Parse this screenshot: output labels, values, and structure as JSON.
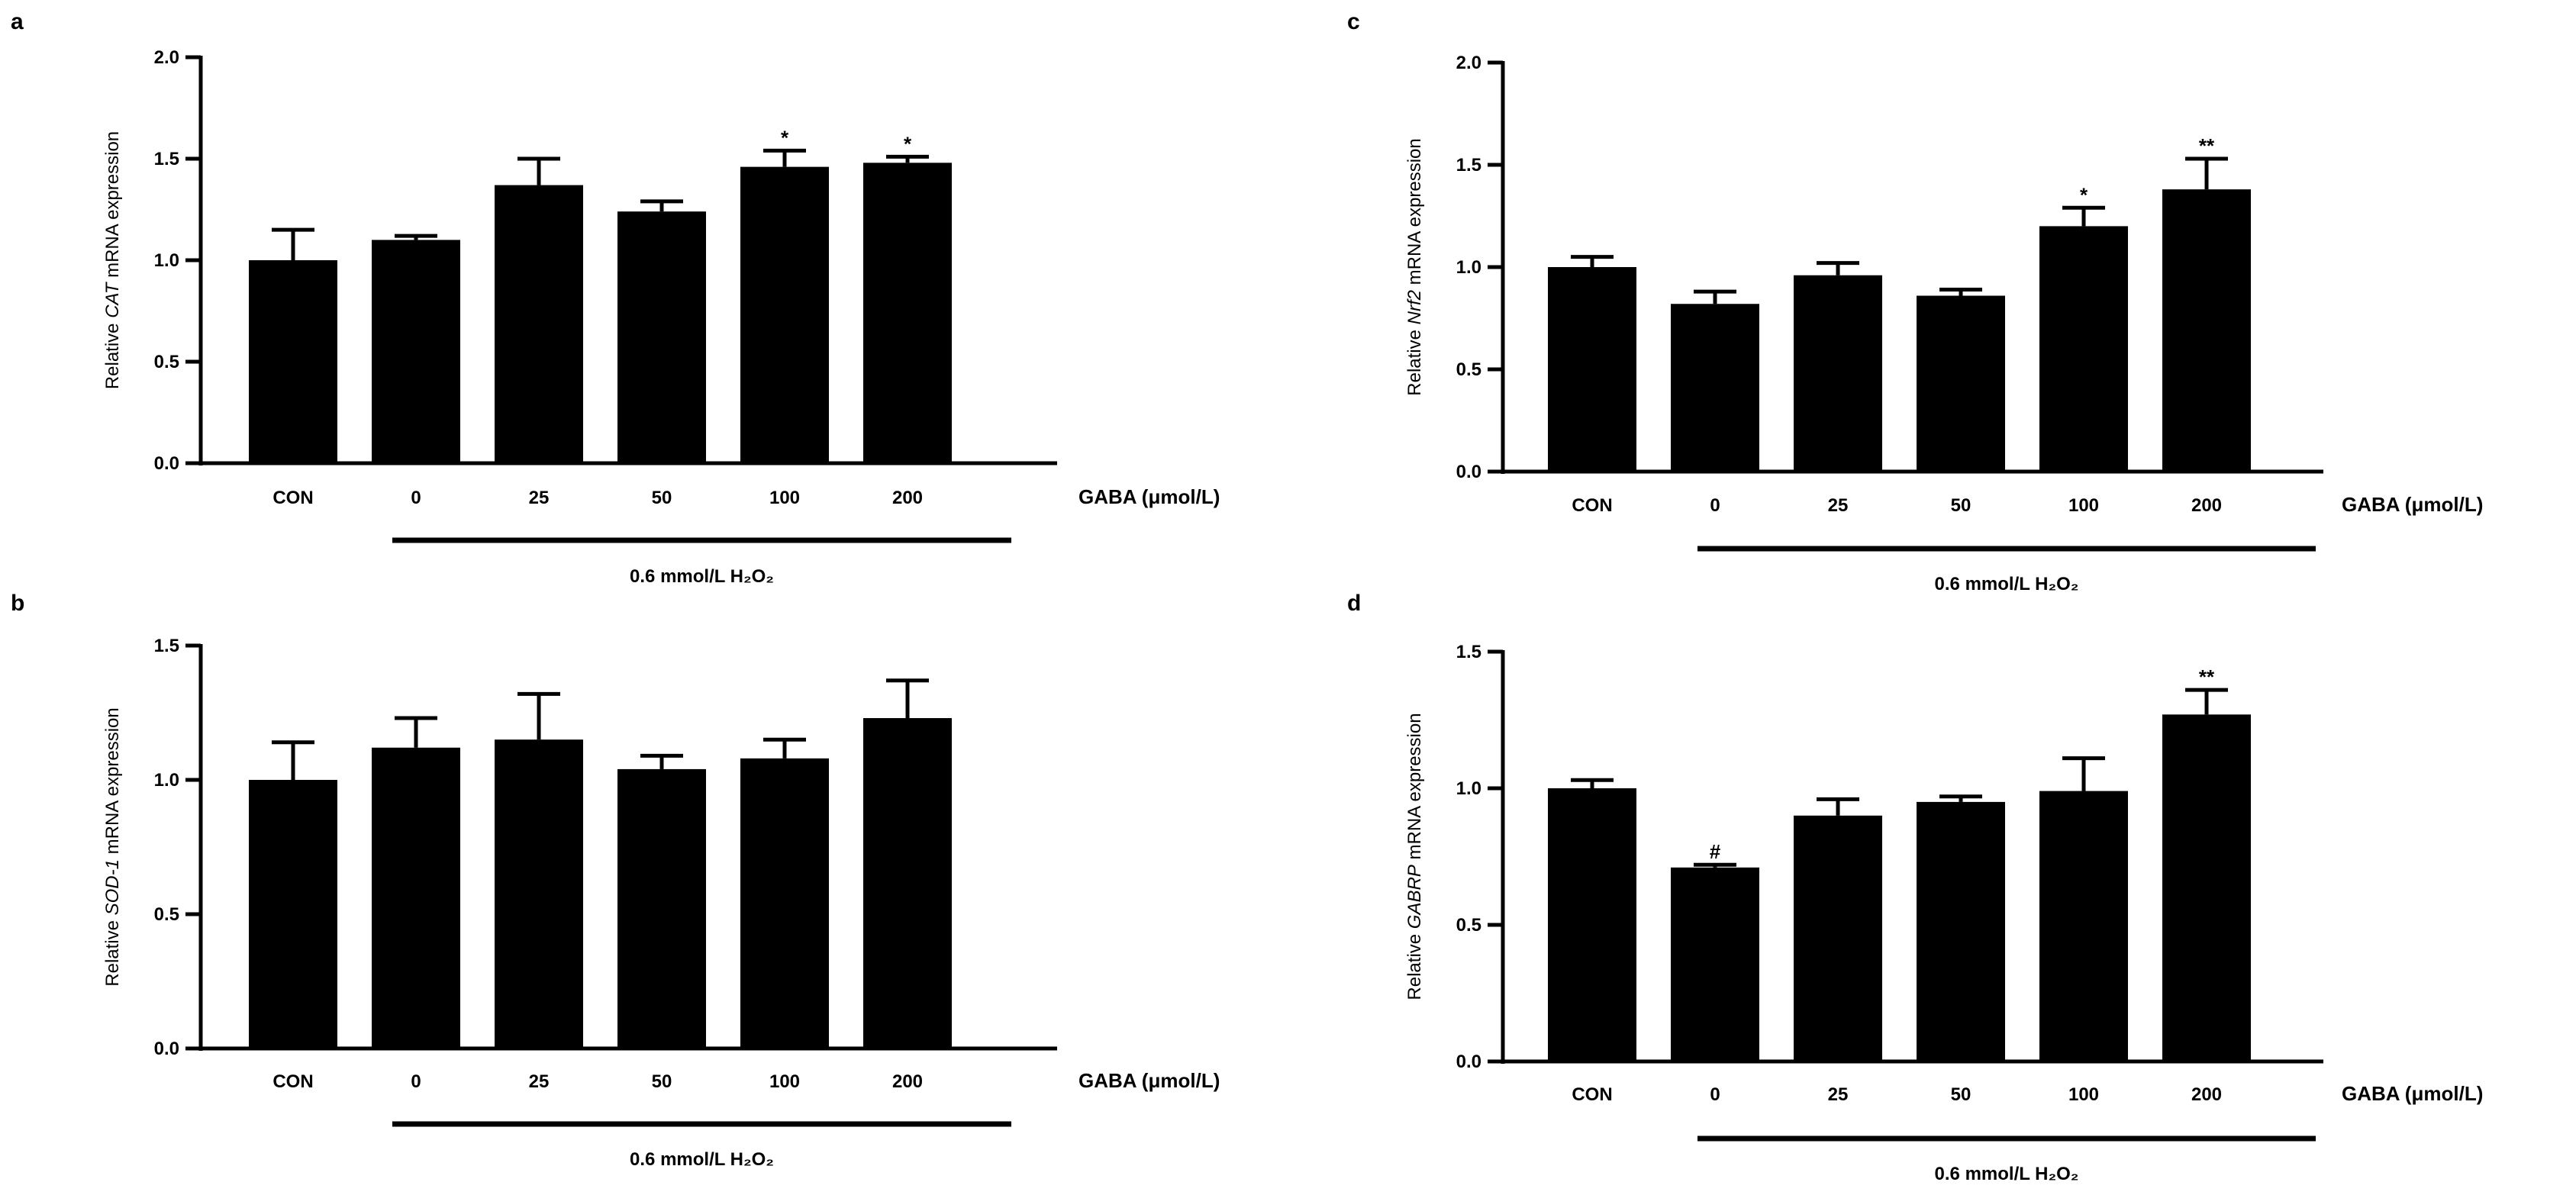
{
  "chart_data": [
    {
      "panel": "a",
      "type": "bar",
      "ylabel_parts": [
        "Relative ",
        "CAT",
        " mRNA expression"
      ],
      "xlabel": "GABA (μmol/L)",
      "treatment_label": "0.6 mmol/L H₂O₂",
      "categories": [
        "CON",
        "0",
        "25",
        "50",
        "100",
        "200"
      ],
      "values": [
        1.0,
        1.1,
        1.37,
        1.24,
        1.46,
        1.48
      ],
      "errors": [
        0.15,
        0.02,
        0.13,
        0.05,
        0.08,
        0.03
      ],
      "significance": [
        "",
        "",
        "",
        "",
        "*",
        "*"
      ],
      "ylim": [
        0,
        2.0
      ],
      "yticks": [
        "0.0",
        "0.5",
        "1.0",
        "1.5",
        "2.0"
      ],
      "ytick_values": [
        0,
        0.5,
        1.0,
        1.5,
        2.0
      ]
    },
    {
      "panel": "b",
      "type": "bar",
      "ylabel_parts": [
        "Relative ",
        "SOD-1",
        " mRNA expression"
      ],
      "xlabel": "GABA (μmol/L)",
      "treatment_label": "0.6 mmol/L H₂O₂",
      "categories": [
        "CON",
        "0",
        "25",
        "50",
        "100",
        "200"
      ],
      "values": [
        1.0,
        1.12,
        1.15,
        1.04,
        1.08,
        1.23
      ],
      "errors": [
        0.14,
        0.11,
        0.17,
        0.05,
        0.07,
        0.14
      ],
      "significance": [
        "",
        "",
        "",
        "",
        "",
        ""
      ],
      "ylim": [
        0,
        1.5
      ],
      "yticks": [
        "0.0",
        "0.5",
        "1.0",
        "1.5"
      ],
      "ytick_values": [
        0,
        0.5,
        1.0,
        1.5
      ]
    },
    {
      "panel": "c",
      "type": "bar",
      "ylabel_parts": [
        "Relative ",
        "Nrf2",
        " mRNA expression"
      ],
      "xlabel": "GABA (μmol/L)",
      "treatment_label": "0.6 mmol/L  H₂O₂",
      "categories": [
        "CON",
        "0",
        "25",
        "50",
        "100",
        "200"
      ],
      "values": [
        1.0,
        0.82,
        0.96,
        0.86,
        1.2,
        1.38
      ],
      "errors": [
        0.05,
        0.06,
        0.06,
        0.03,
        0.09,
        0.15
      ],
      "significance": [
        "",
        "",
        "",
        "",
        "*",
        "**"
      ],
      "ylim": [
        0,
        2.0
      ],
      "yticks": [
        "0.0",
        "0.5",
        "1.0",
        "1.5",
        "2.0"
      ],
      "ytick_values": [
        0,
        0.5,
        1.0,
        1.5,
        2.0
      ]
    },
    {
      "panel": "d",
      "type": "bar",
      "ylabel_parts": [
        "Relative ",
        "GABRP",
        " mRNA expression"
      ],
      "xlabel": "GABA (μmol/L)",
      "treatment_label": "0.6 mmol/L  H₂O₂",
      "categories": [
        "CON",
        "0",
        "25",
        "50",
        "100",
        "200"
      ],
      "values": [
        1.0,
        0.71,
        0.9,
        0.95,
        0.99,
        1.27
      ],
      "errors": [
        0.03,
        0.01,
        0.06,
        0.02,
        0.12,
        0.09
      ],
      "significance": [
        "",
        "#",
        "",
        "",
        "",
        "**"
      ],
      "ylim": [
        0,
        1.5
      ],
      "yticks": [
        "0.0",
        "0.5",
        "1.0",
        "1.5"
      ],
      "ytick_values": [
        0,
        0.5,
        1.0,
        1.5
      ]
    }
  ]
}
